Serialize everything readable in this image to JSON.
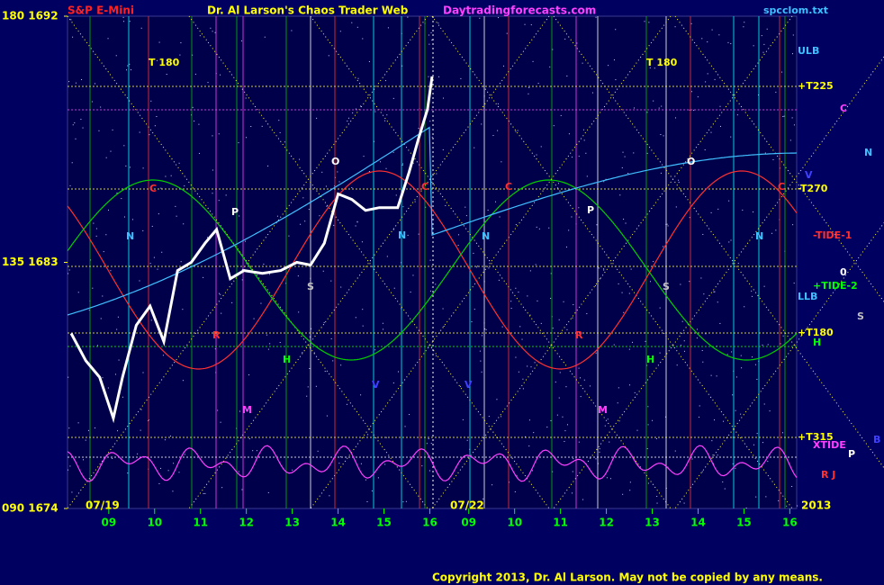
{
  "chart_data": {
    "type": "line",
    "title": "Dr. Al Larson's Chaos Trader Web",
    "symbol": "S&P E-Mini",
    "site": "Daytradingforecasts.com",
    "file": "spcclom.txt",
    "copyright": "Copyright 2013, Dr. Al Larson. May not be copied by any means.",
    "date_labels": [
      "07/19",
      "07/22",
      "2013"
    ],
    "annotations": [
      "T   180",
      "T   180",
      "ULB",
      "+T225",
      "C",
      "N",
      "V",
      "-T270",
      "-TIDE-1",
      "0",
      "+TIDE-2",
      "LLB",
      "S",
      "+T180",
      "H",
      "+T315",
      "XTIDE",
      "B",
      "P",
      "R J",
      "C",
      "N",
      "P",
      "O",
      "S",
      "H",
      "M",
      "R",
      "N",
      "C",
      "N",
      "C",
      "P",
      "O",
      "S",
      "H",
      "M",
      "R",
      "N",
      "C",
      "V",
      "V"
    ],
    "xlim": [
      8.1,
      24
    ],
    "xticks": [
      {
        "value": 9,
        "label": "09"
      },
      10,
      11,
      12,
      13,
      14,
      15,
      16,
      {
        "value": 16.85,
        "label": "09"
      },
      {
        "value": 17.85,
        "label": "10"
      },
      {
        "value": 18.85,
        "label": "11"
      },
      {
        "value": 19.85,
        "label": "12"
      },
      {
        "value": 20.85,
        "label": "13"
      },
      {
        "value": 21.85,
        "label": "14"
      },
      {
        "value": 22.85,
        "label": "15"
      },
      {
        "value": 23.85,
        "label": "16"
      }
    ],
    "ylim": [
      1674,
      1692
    ],
    "yticks": [
      {
        "value": 1674,
        "label": "090 1674"
      },
      {
        "value": 1683,
        "label": "135 1683"
      },
      {
        "value": 1692,
        "label": "180 1692"
      }
    ],
    "grid": false,
    "series": [
      {
        "name": "S&P E-Mini",
        "color": "#ffffff",
        "x": [
          8.18,
          8.5,
          8.8,
          9.1,
          9.3,
          9.6,
          9.9,
          10.2,
          10.5,
          10.8,
          11.1,
          11.35,
          11.65,
          11.95,
          12.35,
          12.75,
          13.1,
          13.4,
          13.7,
          14.0,
          14.3,
          14.6,
          14.9,
          15.3,
          15.55,
          15.75,
          15.95,
          16.05
        ],
        "values": [
          1680.4,
          1679.4,
          1678.8,
          1677.3,
          1678.8,
          1680.7,
          1681.4,
          1680.1,
          1682.7,
          1683.0,
          1683.7,
          1684.2,
          1682.4,
          1682.7,
          1682.6,
          1682.7,
          1683.0,
          1682.9,
          1683.7,
          1685.5,
          1685.3,
          1684.9,
          1685.0,
          1685.0,
          1686.3,
          1687.5,
          1688.6,
          1689.8
        ]
      }
    ]
  }
}
